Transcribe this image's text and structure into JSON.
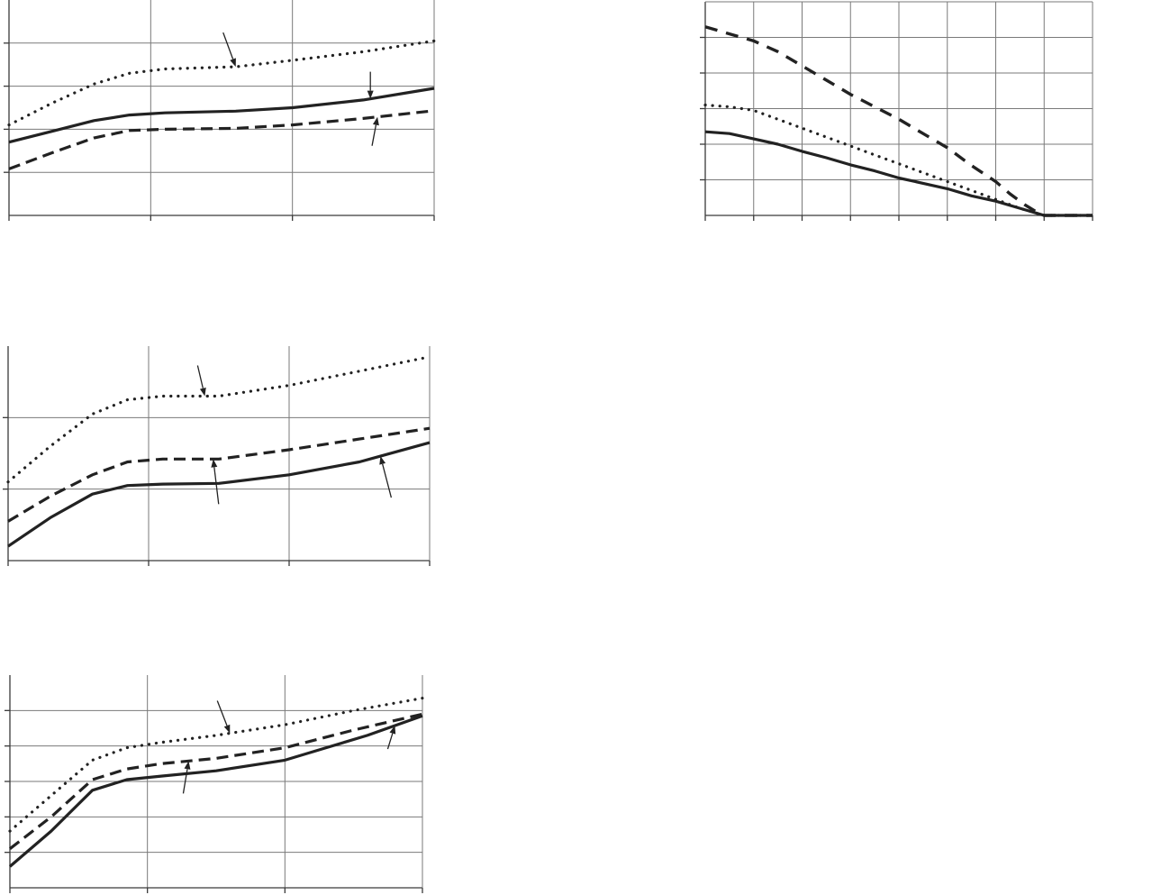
{
  "chart_data": [
    {
      "id": "panel-top-left",
      "type": "line",
      "xlim": [
        0,
        3
      ],
      "ylim": [
        0,
        5
      ],
      "x_grid": [
        1,
        2
      ],
      "y_grid": [
        1,
        2,
        3,
        4
      ],
      "grid": true,
      "series": [
        {
          "style": "dotted",
          "x": [
            0,
            0.3,
            0.6,
            0.85,
            1.1,
            1.6,
            2.0,
            2.5,
            3.0
          ],
          "y": [
            2.1,
            2.6,
            3.05,
            3.3,
            3.4,
            3.45,
            3.6,
            3.8,
            4.05
          ]
        },
        {
          "style": "solid",
          "x": [
            0,
            0.3,
            0.6,
            0.85,
            1.1,
            1.6,
            2.0,
            2.5,
            3.0
          ],
          "y": [
            1.7,
            1.95,
            2.2,
            2.33,
            2.38,
            2.42,
            2.5,
            2.68,
            2.95
          ]
        },
        {
          "style": "dashed",
          "x": [
            0,
            0.3,
            0.6,
            0.85,
            1.1,
            1.6,
            2.0,
            2.5,
            3.0
          ],
          "y": [
            1.08,
            1.45,
            1.8,
            1.97,
            2.0,
            2.02,
            2.1,
            2.25,
            2.43
          ]
        }
      ],
      "pointers": [
        {
          "series": 0,
          "at_x": 1.6,
          "dx": -14,
          "dy": -38
        },
        {
          "series": 1,
          "at_x": 2.55,
          "dx": 0,
          "dy": -30
        },
        {
          "series": 2,
          "at_x": 2.6,
          "dx": -6,
          "dy": 32
        }
      ]
    },
    {
      "id": "panel-top-right",
      "type": "line",
      "xlim": [
        0,
        8
      ],
      "ylim": [
        0,
        6
      ],
      "x_grid": [
        1,
        2,
        3,
        4,
        5,
        6,
        7
      ],
      "y_grid": [
        1,
        2,
        3,
        4,
        5
      ],
      "grid": true,
      "series": [
        {
          "style": "dashed-thick",
          "x": [
            0,
            0.5,
            1,
            1.5,
            2,
            2.5,
            3,
            3.5,
            4,
            4.5,
            5,
            5.5,
            6,
            6.3,
            6.6,
            6.9,
            7,
            7.5,
            8
          ],
          "y": [
            5.3,
            5.1,
            4.9,
            4.6,
            4.2,
            3.8,
            3.4,
            3.05,
            2.7,
            2.3,
            1.9,
            1.4,
            0.95,
            0.6,
            0.3,
            0.05,
            0,
            0,
            0
          ]
        },
        {
          "style": "dotted",
          "x": [
            0,
            0.5,
            1,
            1.5,
            2,
            2.5,
            3,
            3.5,
            4,
            4.5,
            5,
            5.5,
            6,
            6.5,
            7,
            7.5,
            8
          ],
          "y": [
            3.1,
            3.05,
            2.95,
            2.7,
            2.45,
            2.2,
            1.95,
            1.7,
            1.45,
            1.2,
            0.95,
            0.7,
            0.45,
            0.2,
            0,
            0,
            0
          ]
        },
        {
          "style": "solid",
          "x": [
            0,
            0.5,
            1,
            1.5,
            2,
            2.5,
            3,
            3.5,
            4,
            4.5,
            5,
            5.5,
            6,
            6.5,
            7,
            7.5,
            8
          ],
          "y": [
            2.35,
            2.3,
            2.15,
            2.0,
            1.8,
            1.62,
            1.42,
            1.25,
            1.05,
            0.9,
            0.75,
            0.55,
            0.4,
            0.2,
            0,
            0,
            0
          ]
        }
      ],
      "pointers": []
    },
    {
      "id": "panel-middle-left",
      "type": "line",
      "xlim": [
        0,
        3
      ],
      "ylim": [
        0,
        3
      ],
      "x_grid": [
        1,
        2
      ],
      "y_grid": [
        1,
        2
      ],
      "grid": true,
      "series": [
        {
          "style": "dotted",
          "x": [
            0,
            0.3,
            0.6,
            0.85,
            1.1,
            1.5,
            2.0,
            2.5,
            3.0
          ],
          "y": [
            1.1,
            1.6,
            2.05,
            2.25,
            2.3,
            2.3,
            2.45,
            2.65,
            2.85
          ]
        },
        {
          "style": "dashed",
          "x": [
            0,
            0.3,
            0.6,
            0.85,
            1.1,
            1.5,
            2.0,
            2.5,
            3.0
          ],
          "y": [
            0.55,
            0.9,
            1.2,
            1.38,
            1.42,
            1.42,
            1.55,
            1.7,
            1.85
          ]
        },
        {
          "style": "solid",
          "x": [
            0,
            0.3,
            0.6,
            0.85,
            1.1,
            1.5,
            2.0,
            2.5,
            3.0
          ],
          "y": [
            0.2,
            0.6,
            0.93,
            1.05,
            1.07,
            1.08,
            1.2,
            1.38,
            1.65
          ]
        }
      ],
      "pointers": [
        {
          "series": 0,
          "at_x": 1.4,
          "dx": -8,
          "dy": -34
        },
        {
          "series": 1,
          "at_x": 1.46,
          "dx": 6,
          "dy": 50
        },
        {
          "series": 2,
          "at_x": 2.65,
          "dx": 12,
          "dy": 46
        }
      ]
    },
    {
      "id": "panel-bottom-left",
      "type": "line",
      "xlim": [
        0,
        3
      ],
      "ylim": [
        0,
        6
      ],
      "x_grid": [
        1,
        2
      ],
      "y_grid": [
        1,
        2,
        3,
        4,
        5
      ],
      "grid": true,
      "series": [
        {
          "style": "dotted",
          "x": [
            0,
            0.3,
            0.6,
            0.85,
            1.1,
            1.5,
            2.0,
            2.5,
            3.0
          ],
          "y": [
            1.6,
            2.6,
            3.6,
            3.95,
            4.1,
            4.3,
            4.6,
            5.0,
            5.35
          ]
        },
        {
          "style": "dashed",
          "x": [
            0,
            0.3,
            0.6,
            0.85,
            1.1,
            1.5,
            2.0,
            2.5,
            3.0
          ],
          "y": [
            1.1,
            2.0,
            3.05,
            3.35,
            3.5,
            3.65,
            3.95,
            4.45,
            4.9
          ]
        },
        {
          "style": "solid",
          "x": [
            0,
            0.3,
            0.6,
            0.85,
            1.1,
            1.5,
            2.0,
            2.3,
            2.6,
            3.0
          ],
          "y": [
            0.6,
            1.6,
            2.75,
            3.05,
            3.15,
            3.3,
            3.6,
            3.95,
            4.3,
            4.85
          ]
        }
      ],
      "pointers": [
        {
          "series": 0,
          "at_x": 1.6,
          "dx": -14,
          "dy": -36
        },
        {
          "series": 1,
          "at_x": 1.3,
          "dx": -6,
          "dy": 36
        },
        {
          "series": 2,
          "at_x": 2.8,
          "dx": -8,
          "dy": 26
        }
      ]
    }
  ]
}
